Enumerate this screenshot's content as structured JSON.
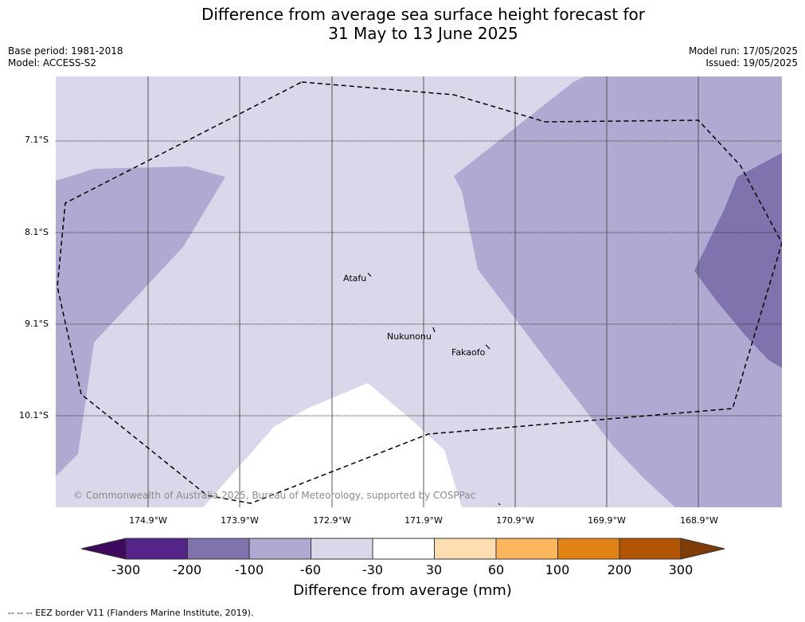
{
  "title_line1": "Difference from average sea surface height forecast for",
  "title_line2": "31 May to 13 June 2025",
  "meta_left": {
    "base_period": "Base period: 1981-2018",
    "model": "Model: ACCESS-S2"
  },
  "meta_right": {
    "model_run": "Model run: 17/05/2025",
    "issued": "Issued: 19/05/2025"
  },
  "lat_labels": [
    "7.1°S",
    "8.1°S",
    "9.1°S",
    "10.1°S"
  ],
  "lon_labels": [
    "174.9°W",
    "173.9°W",
    "172.9°W",
    "171.9°W",
    "170.9°W",
    "169.9°W",
    "168.9°W"
  ],
  "places": [
    "Atafu",
    "Nukunonu",
    "Fakaofo"
  ],
  "copyright": "© Commonwealth of Australia 2025, Bureau of Meteorology, supported by COSPPac",
  "colorbar": {
    "title": "Difference from average (mm)",
    "ticks": [
      "-300",
      "-200",
      "-100",
      "-60",
      "-30",
      "30",
      "60",
      "100",
      "200",
      "300"
    ],
    "colors": [
      "#3f0a5e",
      "#55248a",
      "#8072ad",
      "#b0a9d1",
      "#d8d8ea",
      "#ffffff",
      "#fedeb0",
      "#fbb65e",
      "#e08214",
      "#b25606",
      "#7f3b08"
    ]
  },
  "footnote": "--  --  -- EEZ border V11 (Flanders Marine Institute, 2019).",
  "colors": {
    "band_low": "#d8d8ea",
    "band_mid": "#b0a9d1",
    "band_strong": "#8072ad",
    "band_zero": "#ffffff"
  }
}
